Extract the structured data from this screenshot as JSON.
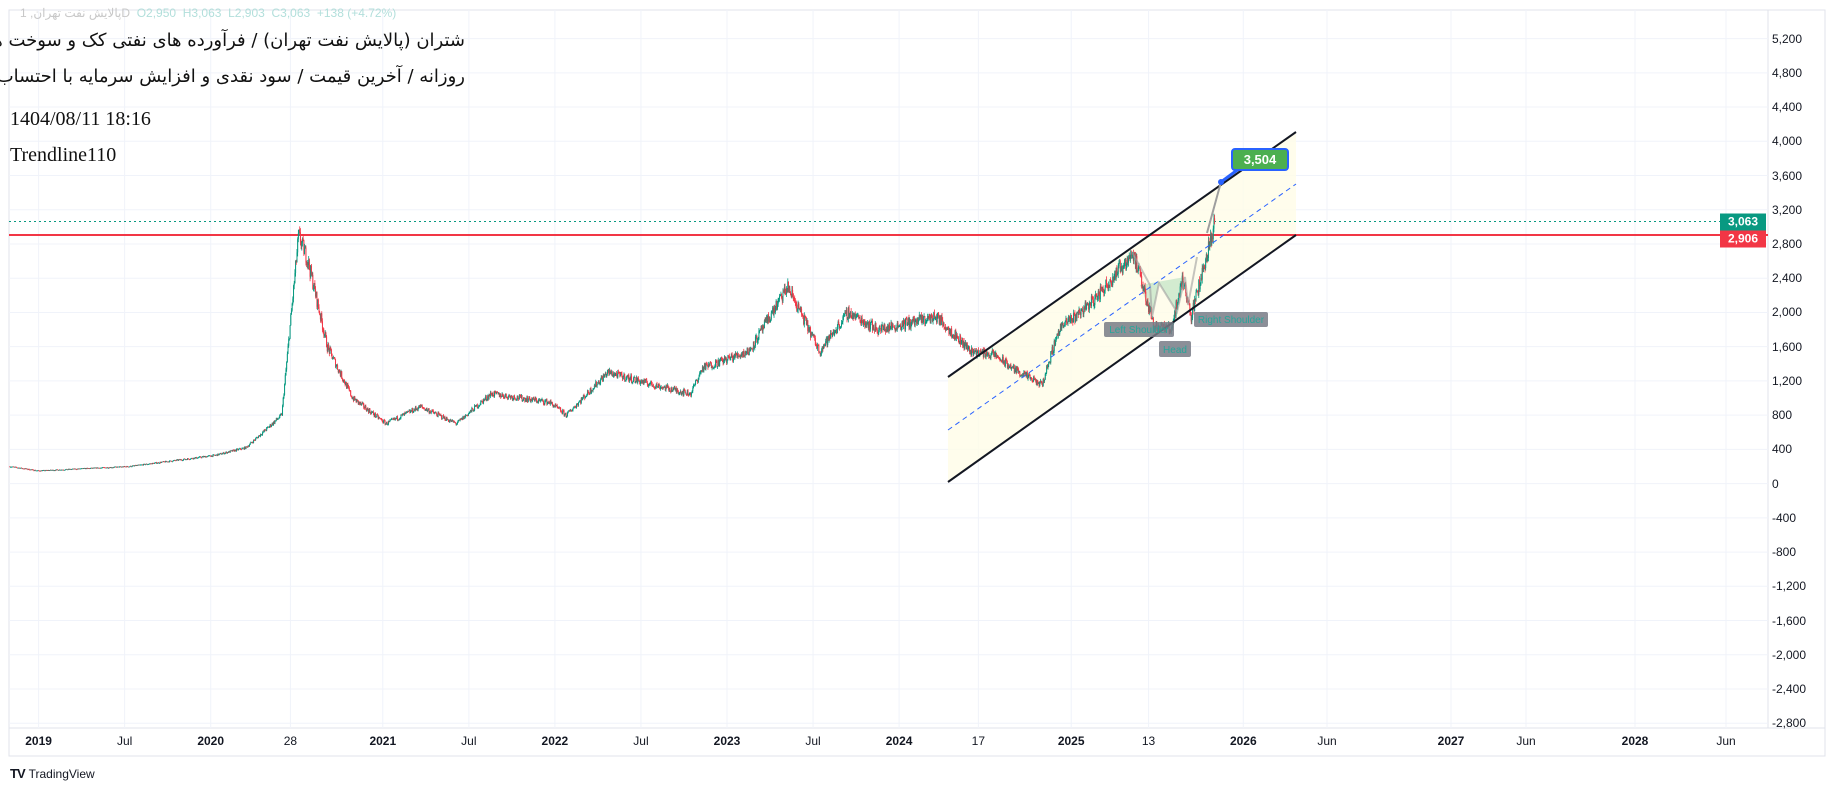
{
  "legend": {
    "symbol": "پالایش نفت تهران, 1D",
    "open": "O2,950",
    "high": "H3,063",
    "low": "L2,903",
    "close": "C3,063",
    "change": "+138 (+4.72%)"
  },
  "header": {
    "title": "شتران (پالایش نفت تهران) / فرآورده های نفتی کک و سوخت هسته ای",
    "subtitle": "روزانه / آخرین قیمت / سود نقدی و افزایش سرمایه با احتساب آورده",
    "datetime": "1404/08/11 18:16",
    "indicator": "Trendline110"
  },
  "chart_data": {
    "type": "candlestick",
    "y_ticks": [
      "5,200",
      "4,800",
      "4,400",
      "4,000",
      "3,600",
      "3,200",
      "2,800",
      "2,400",
      "2,000",
      "1,600",
      "1,200",
      "800",
      "400",
      "0",
      "-400",
      "-800",
      "-1,200",
      "-1,600",
      "-2,000",
      "-2,400",
      "-2,800"
    ],
    "ylim": [
      -2900,
      5500
    ],
    "x_ticks": [
      {
        "label": "2019",
        "date": "2019-01-01"
      },
      {
        "label": "Jul",
        "date": "2019-07-01"
      },
      {
        "label": "2020",
        "date": "2020-01-01"
      },
      {
        "label": "28",
        "date": "2020-06-18"
      },
      {
        "label": "2021",
        "date": "2021-01-01"
      },
      {
        "label": "Jul",
        "date": "2021-07-01"
      },
      {
        "label": "2022",
        "date": "2022-01-01"
      },
      {
        "label": "Jul",
        "date": "2022-07-01"
      },
      {
        "label": "2023",
        "date": "2023-01-01"
      },
      {
        "label": "Jul",
        "date": "2023-07-01"
      },
      {
        "label": "2024",
        "date": "2024-01-01"
      },
      {
        "label": "17",
        "date": "2024-06-17"
      },
      {
        "label": "2025",
        "date": "2025-01-01"
      },
      {
        "label": "13",
        "date": "2025-06-13"
      },
      {
        "label": "2026",
        "date": "2026-01-01"
      },
      {
        "label": "Jun",
        "date": "2026-06-01"
      },
      {
        "label": "2027",
        "date": "2027-01-01"
      },
      {
        "label": "Jun",
        "date": "2027-06-01"
      },
      {
        "label": "2028",
        "date": "2028-01-01"
      },
      {
        "label": "Jun",
        "date": "2028-06-01"
      }
    ],
    "price_path": [
      [
        "2018-11-01",
        200
      ],
      [
        "2019-01-01",
        150
      ],
      [
        "2019-07-10",
        200
      ],
      [
        "2020-01-10",
        330
      ],
      [
        "2020-03-15",
        420
      ],
      [
        "2020-05-30",
        800
      ],
      [
        "2020-07-05",
        2900
      ],
      [
        "2020-07-25",
        2600
      ],
      [
        "2020-09-05",
        1600
      ],
      [
        "2020-10-28",
        1000
      ],
      [
        "2021-01-08",
        700
      ],
      [
        "2021-03-20",
        900
      ],
      [
        "2021-06-05",
        700
      ],
      [
        "2021-08-18",
        1050
      ],
      [
        "2021-12-20",
        950
      ],
      [
        "2022-01-25",
        800
      ],
      [
        "2022-04-22",
        1300
      ],
      [
        "2022-07-30",
        1150
      ],
      [
        "2022-10-15",
        1050
      ],
      [
        "2022-11-10",
        1350
      ],
      [
        "2023-02-18",
        1550
      ],
      [
        "2023-05-08",
        2300
      ],
      [
        "2023-07-15",
        1550
      ],
      [
        "2023-09-15",
        2000
      ],
      [
        "2023-11-18",
        1800
      ],
      [
        "2024-03-20",
        1950
      ],
      [
        "2024-06-01",
        1550
      ],
      [
        "2024-07-22",
        1500
      ],
      [
        "2024-08-28",
        1350
      ],
      [
        "2024-10-30",
        1150
      ],
      [
        "2024-12-05",
        1800
      ],
      [
        "2025-02-20",
        2150
      ],
      [
        "2025-05-10",
        2700
      ],
      [
        "2025-06-25",
        1850
      ],
      [
        "2025-07-30",
        1800
      ],
      [
        "2025-08-25",
        2400
      ],
      [
        "2025-09-12",
        1950
      ],
      [
        "2025-11-02",
        3063
      ]
    ],
    "last_price": {
      "value": 3063,
      "label": "3,063",
      "color": "#089981"
    },
    "horizontal_line": {
      "value": 2906,
      "label": "2,906",
      "color": "#f23645"
    },
    "target": {
      "value": 3504,
      "label": "3,504",
      "color": "#4caf50",
      "border": "#2962ff"
    },
    "pattern": {
      "labels": [
        "Left Shoulder",
        "Head",
        "Right Shoulder"
      ]
    },
    "colors": {
      "up": "#089981",
      "down": "#f23645",
      "channel": "#131722",
      "channel_mid": "#2962ff",
      "channel_fill": "#fffde7"
    }
  },
  "footer": {
    "brand": "TradingView"
  }
}
